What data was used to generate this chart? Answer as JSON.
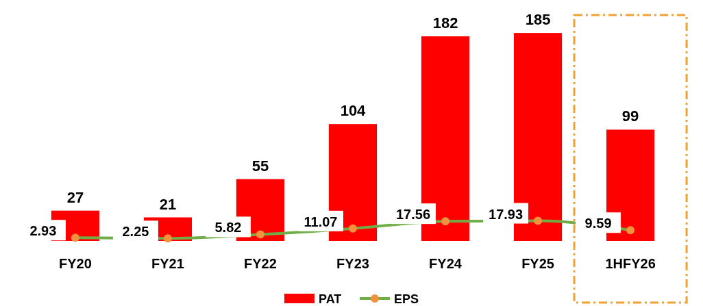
{
  "chart_data": {
    "type": "bar",
    "categories": [
      "FY20",
      "FY21",
      "FY22",
      "FY23",
      "FY24",
      "FY25",
      "1HFY26"
    ],
    "series": [
      {
        "name": "PAT",
        "color": "#ff0000",
        "values": [
          27,
          21,
          55,
          104,
          182,
          185,
          99
        ]
      },
      {
        "name": "EPS",
        "type": "line",
        "color": "#70ad47",
        "marker": "circle",
        "values": [
          2.93,
          2.25,
          5.82,
          11.07,
          17.56,
          17.93,
          9.59
        ]
      }
    ],
    "data_labels": true,
    "legend": "bottom"
  }
}
